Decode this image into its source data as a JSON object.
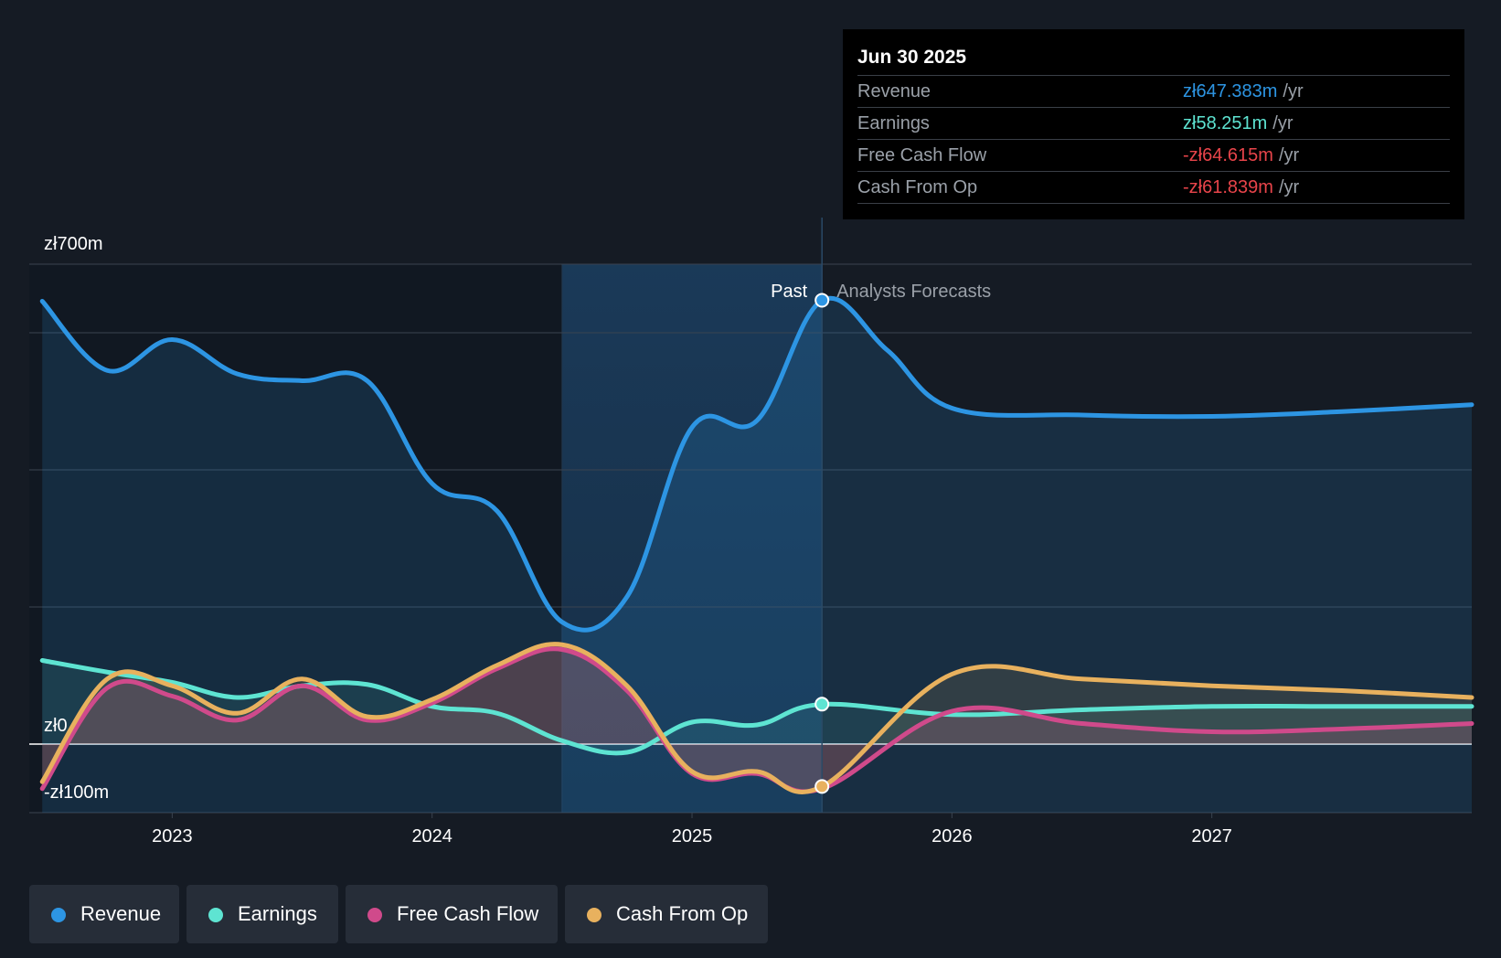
{
  "chart_data": {
    "type": "line",
    "y_axis": {
      "min": -100,
      "max": 700,
      "tick_labels": [
        {
          "value": 700,
          "label": "zł700m"
        },
        {
          "value": 0,
          "label": "zł0"
        },
        {
          "value": -100,
          "label": "-zł100m"
        }
      ],
      "gridlines": [
        700,
        600,
        400,
        200,
        0,
        -100
      ]
    },
    "x_axis": {
      "min": 2022.45,
      "max": 2028.0,
      "tick_labels": [
        {
          "value": 2023.0,
          "label": "2023"
        },
        {
          "value": 2024.0,
          "label": "2024"
        },
        {
          "value": 2025.0,
          "label": "2025"
        },
        {
          "value": 2026.0,
          "label": "2026"
        },
        {
          "value": 2027.0,
          "label": "2027"
        }
      ]
    },
    "divider_x": 2025.5,
    "highlight_start_x": 2024.5,
    "past_label": "Past",
    "forecast_label": "Analysts Forecasts",
    "series": [
      {
        "name": "Revenue",
        "color": "#2d95e3",
        "area": true,
        "points": [
          [
            2022.5,
            646
          ],
          [
            2022.75,
            545
          ],
          [
            2023.0,
            590
          ],
          [
            2023.25,
            540
          ],
          [
            2023.5,
            530
          ],
          [
            2023.75,
            530
          ],
          [
            2024.0,
            380
          ],
          [
            2024.25,
            340
          ],
          [
            2024.5,
            178
          ],
          [
            2024.75,
            215
          ],
          [
            2025.0,
            462
          ],
          [
            2025.25,
            472
          ],
          [
            2025.5,
            647
          ],
          [
            2025.75,
            575
          ],
          [
            2026.0,
            490
          ],
          [
            2026.5,
            480
          ],
          [
            2027.0,
            478
          ],
          [
            2027.5,
            485
          ],
          [
            2028.0,
            495
          ]
        ]
      },
      {
        "name": "Earnings",
        "color": "#5ee4d2",
        "area": true,
        "points": [
          [
            2022.5,
            122
          ],
          [
            2022.75,
            105
          ],
          [
            2023.0,
            90
          ],
          [
            2023.25,
            68
          ],
          [
            2023.5,
            85
          ],
          [
            2023.75,
            87
          ],
          [
            2024.0,
            55
          ],
          [
            2024.25,
            45
          ],
          [
            2024.5,
            5
          ],
          [
            2024.75,
            -12
          ],
          [
            2025.0,
            32
          ],
          [
            2025.25,
            28
          ],
          [
            2025.5,
            58
          ],
          [
            2026.0,
            43
          ],
          [
            2026.5,
            50
          ],
          [
            2027.0,
            55
          ],
          [
            2027.5,
            55
          ],
          [
            2028.0,
            55
          ]
        ]
      },
      {
        "name": "Free Cash Flow",
        "color": "#d04a8b",
        "area": true,
        "points": [
          [
            2022.5,
            -65
          ],
          [
            2022.75,
            82
          ],
          [
            2023.0,
            70
          ],
          [
            2023.25,
            35
          ],
          [
            2023.5,
            85
          ],
          [
            2023.75,
            35
          ],
          [
            2024.0,
            60
          ],
          [
            2024.25,
            110
          ],
          [
            2024.5,
            138
          ],
          [
            2024.75,
            78
          ],
          [
            2025.0,
            -43
          ],
          [
            2025.25,
            -43
          ],
          [
            2025.5,
            -65
          ],
          [
            2026.0,
            48
          ],
          [
            2026.5,
            30
          ],
          [
            2027.0,
            18
          ],
          [
            2027.5,
            22
          ],
          [
            2028.0,
            30
          ]
        ]
      },
      {
        "name": "Cash From Op",
        "color": "#e8b15e",
        "area": true,
        "points": [
          [
            2022.5,
            -55
          ],
          [
            2022.75,
            95
          ],
          [
            2023.0,
            85
          ],
          [
            2023.25,
            45
          ],
          [
            2023.5,
            95
          ],
          [
            2023.75,
            40
          ],
          [
            2024.0,
            65
          ],
          [
            2024.25,
            115
          ],
          [
            2024.5,
            145
          ],
          [
            2024.75,
            85
          ],
          [
            2025.0,
            -40
          ],
          [
            2025.25,
            -40
          ],
          [
            2025.5,
            -62
          ],
          [
            2026.0,
            102
          ],
          [
            2026.5,
            95
          ],
          [
            2027.0,
            85
          ],
          [
            2027.5,
            78
          ],
          [
            2028.0,
            68
          ]
        ]
      }
    ],
    "markers": [
      {
        "series": "Revenue",
        "x": 2025.5,
        "y": 647.383,
        "color": "#2d95e3"
      },
      {
        "series": "Earnings",
        "x": 2025.5,
        "y": 58.251,
        "color": "#5ee4d2"
      },
      {
        "series": "Cash From Op",
        "x": 2025.5,
        "y": -61.839,
        "color": "#e8b15e"
      }
    ]
  },
  "tooltip": {
    "date": "Jun 30 2025",
    "rows": [
      {
        "name": "Revenue",
        "value": "zł647.383m",
        "unit": "/yr",
        "color": "#2d95e3"
      },
      {
        "name": "Earnings",
        "value": "zł58.251m",
        "unit": "/yr",
        "color": "#5ee4d2"
      },
      {
        "name": "Free Cash Flow",
        "value": "-zł64.615m",
        "unit": "/yr",
        "color": "#e8444a"
      },
      {
        "name": "Cash From Op",
        "value": "-zł61.839m",
        "unit": "/yr",
        "color": "#e8444a"
      }
    ]
  },
  "legend": {
    "items": [
      {
        "label": "Revenue",
        "color": "#2d95e3"
      },
      {
        "label": "Earnings",
        "color": "#5ee4d2"
      },
      {
        "label": "Free Cash Flow",
        "color": "#d04a8b"
      },
      {
        "label": "Cash From Op",
        "color": "#e8b15e"
      }
    ]
  }
}
